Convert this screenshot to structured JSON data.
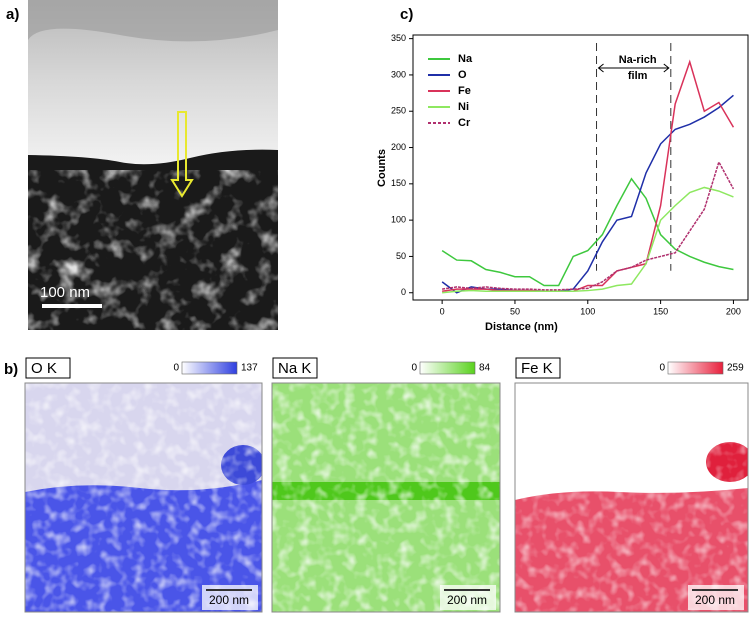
{
  "panels": {
    "a": {
      "label": "a)",
      "scale_bar": "100 nm"
    },
    "b": {
      "label": "b)",
      "maps": [
        {
          "title": "O K",
          "min": 0,
          "max": 137,
          "scale_bar": "200 nm"
        },
        {
          "title": "Na K",
          "min": 0,
          "max": 84,
          "scale_bar": "200 nm"
        },
        {
          "title": "Fe K",
          "min": 0,
          "max": 259,
          "scale_bar": "200 nm"
        }
      ]
    }
  },
  "chart_data": {
    "type": "line",
    "label": "c)",
    "xlabel": "Distance (nm)",
    "ylabel": "Counts",
    "x": [
      0,
      10,
      20,
      30,
      40,
      50,
      60,
      70,
      80,
      90,
      100,
      110,
      120,
      130,
      140,
      150,
      160,
      170,
      180,
      190,
      200
    ],
    "series": [
      {
        "name": "Na",
        "color": "#3ec83e",
        "values": [
          58,
          45,
          44,
          32,
          28,
          22,
          22,
          10,
          10,
          50,
          58,
          80,
          120,
          157,
          130,
          80,
          60,
          50,
          42,
          36,
          32
        ]
      },
      {
        "name": "O",
        "color": "#1f2fa8",
        "values": [
          15,
          0,
          8,
          5,
          5,
          3,
          3,
          2,
          2,
          5,
          30,
          70,
          100,
          105,
          165,
          205,
          225,
          232,
          242,
          255,
          272
        ]
      },
      {
        "name": "Fe",
        "color": "#d9325a",
        "values": [
          2,
          5,
          5,
          5,
          3,
          3,
          3,
          2,
          2,
          2,
          10,
          10,
          30,
          35,
          40,
          120,
          260,
          318,
          250,
          262,
          228
        ]
      },
      {
        "name": "Ni",
        "color": "#8ee860",
        "values": [
          0,
          2,
          3,
          2,
          2,
          2,
          2,
          2,
          2,
          2,
          3,
          5,
          10,
          12,
          40,
          100,
          120,
          138,
          145,
          140,
          132
        ]
      },
      {
        "name": "Cr",
        "color": "#b0306e",
        "values": [
          5,
          8,
          6,
          8,
          6,
          5,
          5,
          4,
          4,
          5,
          6,
          15,
          30,
          35,
          45,
          50,
          55,
          85,
          115,
          180,
          143
        ]
      }
    ],
    "xlim": [
      -20,
      210
    ],
    "ylim": [
      -10,
      355
    ],
    "xticks": [
      0,
      50,
      100,
      150,
      200
    ],
    "yticks": [
      0,
      50,
      100,
      150,
      200,
      250,
      300,
      350
    ],
    "annotation": [
      "Na-rich",
      "film"
    ],
    "film_bounds": [
      106,
      157
    ],
    "legend": "upper left"
  }
}
